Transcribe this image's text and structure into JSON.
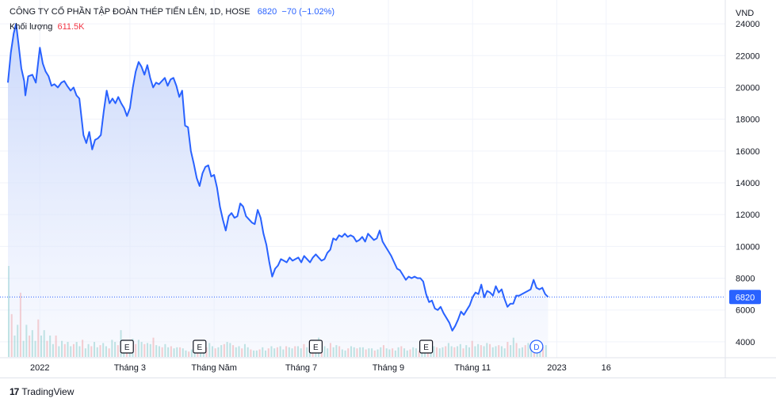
{
  "header": {
    "symbol_title": "CÔNG TY CỔ PHẦN TẬP ĐOÀN THÉP TIẾN LÊN, 1D, HOSE",
    "last_price": "6820",
    "change": "−70 (−1.02%)",
    "volume_label": "Khối lượng",
    "volume_value": "611.5K"
  },
  "footer": {
    "brand": "TradingView",
    "logo_text": "17"
  },
  "colors": {
    "line": "#2962ff",
    "area_top": "#c8d6fb",
    "vol_up": "#26a69a",
    "vol_down": "#ef5350",
    "grid": "#f0f3fa"
  },
  "chart_data": {
    "type": "area",
    "ylabel": "VND",
    "ylim": [
      3000,
      25000
    ],
    "yticks": [
      4000,
      6000,
      8000,
      10000,
      12000,
      14000,
      16000,
      18000,
      20000,
      22000,
      24000
    ],
    "xlim": [
      0,
      12.35
    ],
    "x_ticks": [
      {
        "x": 0.55,
        "label": "2022"
      },
      {
        "x": 2.1,
        "label": "Tháng 3"
      },
      {
        "x": 3.55,
        "label": "Tháng Năm"
      },
      {
        "x": 5.05,
        "label": "Tháng 7"
      },
      {
        "x": 6.55,
        "label": "Tháng 9"
      },
      {
        "x": 8.0,
        "label": "Tháng 11"
      },
      {
        "x": 9.45,
        "label": "2023"
      },
      {
        "x": 10.3,
        "label": "16"
      }
    ],
    "last_value_label": "6820",
    "series": [
      {
        "values": [
          [
            0.0,
            20300
          ],
          [
            0.05,
            22200
          ],
          [
            0.1,
            23400
          ],
          [
            0.14,
            24000
          ],
          [
            0.18,
            22800
          ],
          [
            0.23,
            21200
          ],
          [
            0.28,
            20400
          ],
          [
            0.3,
            19500
          ],
          [
            0.35,
            20700
          ],
          [
            0.42,
            20800
          ],
          [
            0.48,
            20300
          ],
          [
            0.55,
            22500
          ],
          [
            0.6,
            21500
          ],
          [
            0.65,
            21000
          ],
          [
            0.7,
            20700
          ],
          [
            0.75,
            20100
          ],
          [
            0.8,
            20200
          ],
          [
            0.86,
            20000
          ],
          [
            0.92,
            20300
          ],
          [
            0.97,
            20400
          ],
          [
            1.02,
            20100
          ],
          [
            1.08,
            19800
          ],
          [
            1.13,
            20000
          ],
          [
            1.18,
            19500
          ],
          [
            1.23,
            19300
          ],
          [
            1.3,
            17000
          ],
          [
            1.35,
            16500
          ],
          [
            1.4,
            17200
          ],
          [
            1.45,
            16100
          ],
          [
            1.5,
            16700
          ],
          [
            1.55,
            16800
          ],
          [
            1.6,
            17000
          ],
          [
            1.65,
            18500
          ],
          [
            1.7,
            19800
          ],
          [
            1.75,
            19000
          ],
          [
            1.8,
            19300
          ],
          [
            1.85,
            19000
          ],
          [
            1.9,
            19400
          ],
          [
            1.95,
            19000
          ],
          [
            2.0,
            18700
          ],
          [
            2.05,
            18200
          ],
          [
            2.1,
            18700
          ],
          [
            2.15,
            20000
          ],
          [
            2.2,
            21000
          ],
          [
            2.25,
            21600
          ],
          [
            2.3,
            21300
          ],
          [
            2.35,
            20800
          ],
          [
            2.4,
            21400
          ],
          [
            2.45,
            20600
          ],
          [
            2.5,
            20000
          ],
          [
            2.55,
            20300
          ],
          [
            2.6,
            20200
          ],
          [
            2.65,
            20400
          ],
          [
            2.7,
            20600
          ],
          [
            2.75,
            20100
          ],
          [
            2.8,
            20500
          ],
          [
            2.85,
            20600
          ],
          [
            2.9,
            20100
          ],
          [
            2.95,
            19400
          ],
          [
            3.0,
            19800
          ],
          [
            3.05,
            17600
          ],
          [
            3.1,
            17500
          ],
          [
            3.15,
            16000
          ],
          [
            3.2,
            15200
          ],
          [
            3.25,
            14300
          ],
          [
            3.3,
            13800
          ],
          [
            3.35,
            14600
          ],
          [
            3.4,
            15000
          ],
          [
            3.45,
            15100
          ],
          [
            3.5,
            14400
          ],
          [
            3.55,
            14500
          ],
          [
            3.6,
            13700
          ],
          [
            3.65,
            12500
          ],
          [
            3.7,
            11700
          ],
          [
            3.75,
            11000
          ],
          [
            3.8,
            11900
          ],
          [
            3.85,
            12100
          ],
          [
            3.9,
            11800
          ],
          [
            3.95,
            11900
          ],
          [
            4.0,
            12700
          ],
          [
            4.05,
            12500
          ],
          [
            4.1,
            11900
          ],
          [
            4.15,
            11700
          ],
          [
            4.2,
            11500
          ],
          [
            4.25,
            11400
          ],
          [
            4.3,
            12300
          ],
          [
            4.35,
            11800
          ],
          [
            4.4,
            10800
          ],
          [
            4.45,
            10100
          ],
          [
            4.5,
            9000
          ],
          [
            4.55,
            8100
          ],
          [
            4.6,
            8600
          ],
          [
            4.65,
            8800
          ],
          [
            4.7,
            9200
          ],
          [
            4.75,
            9100
          ],
          [
            4.8,
            9000
          ],
          [
            4.85,
            9300
          ],
          [
            4.9,
            9100
          ],
          [
            4.95,
            9200
          ],
          [
            5.0,
            9300
          ],
          [
            5.05,
            9000
          ],
          [
            5.1,
            9400
          ],
          [
            5.15,
            9200
          ],
          [
            5.2,
            9000
          ],
          [
            5.25,
            9300
          ],
          [
            5.3,
            9500
          ],
          [
            5.35,
            9300
          ],
          [
            5.4,
            9100
          ],
          [
            5.45,
            9200
          ],
          [
            5.5,
            9600
          ],
          [
            5.55,
            9800
          ],
          [
            5.6,
            10500
          ],
          [
            5.65,
            10400
          ],
          [
            5.7,
            10700
          ],
          [
            5.75,
            10600
          ],
          [
            5.8,
            10800
          ],
          [
            5.85,
            10600
          ],
          [
            5.9,
            10700
          ],
          [
            5.95,
            10600
          ],
          [
            6.0,
            10300
          ],
          [
            6.05,
            10400
          ],
          [
            6.1,
            10600
          ],
          [
            6.15,
            10300
          ],
          [
            6.2,
            10800
          ],
          [
            6.25,
            10600
          ],
          [
            6.3,
            10400
          ],
          [
            6.35,
            10500
          ],
          [
            6.4,
            11000
          ],
          [
            6.45,
            10300
          ],
          [
            6.5,
            10000
          ],
          [
            6.55,
            9700
          ],
          [
            6.6,
            9400
          ],
          [
            6.65,
            9000
          ],
          [
            6.7,
            8600
          ],
          [
            6.75,
            8500
          ],
          [
            6.8,
            8200
          ],
          [
            6.85,
            7900
          ],
          [
            6.9,
            8100
          ],
          [
            6.95,
            8000
          ],
          [
            7.0,
            8100
          ],
          [
            7.05,
            8000
          ],
          [
            7.1,
            8000
          ],
          [
            7.15,
            7800
          ],
          [
            7.2,
            7000
          ],
          [
            7.25,
            6500
          ],
          [
            7.3,
            6600
          ],
          [
            7.35,
            6100
          ],
          [
            7.4,
            6000
          ],
          [
            7.45,
            6200
          ],
          [
            7.5,
            5800
          ],
          [
            7.55,
            5500
          ],
          [
            7.6,
            5200
          ],
          [
            7.65,
            4700
          ],
          [
            7.7,
            5000
          ],
          [
            7.75,
            5400
          ],
          [
            7.8,
            5900
          ],
          [
            7.85,
            5700
          ],
          [
            7.9,
            6000
          ],
          [
            7.95,
            6300
          ],
          [
            8.0,
            6800
          ],
          [
            8.05,
            7100
          ],
          [
            8.1,
            7000
          ],
          [
            8.15,
            7600
          ],
          [
            8.2,
            6800
          ],
          [
            8.25,
            7200
          ],
          [
            8.3,
            7100
          ],
          [
            8.35,
            6900
          ],
          [
            8.4,
            7500
          ],
          [
            8.45,
            7100
          ],
          [
            8.5,
            7300
          ],
          [
            8.55,
            6700
          ],
          [
            8.6,
            6200
          ],
          [
            8.65,
            6400
          ],
          [
            8.7,
            6400
          ],
          [
            8.75,
            6900
          ],
          [
            8.8,
            6900
          ],
          [
            8.85,
            7000
          ],
          [
            8.9,
            7100
          ],
          [
            8.95,
            7200
          ],
          [
            9.0,
            7300
          ],
          [
            9.05,
            7900
          ],
          [
            9.1,
            7400
          ],
          [
            9.15,
            7300
          ],
          [
            9.2,
            7400
          ],
          [
            9.25,
            7000
          ],
          [
            9.3,
            6820
          ]
        ]
      }
    ],
    "volume": [
      8.5,
      4,
      2,
      3,
      6,
      1.5,
      3,
      2,
      2.5,
      1.5,
      3.5,
      2,
      2.5,
      1.5,
      2,
      1.2,
      2,
      1,
      1.5,
      1.2,
      1.4,
      1,
      1.2,
      1.4,
      1,
      1.6,
      0.8,
      1.2,
      1,
      1.4,
      0.9,
      1.1,
      1.3,
      1,
      0.8,
      1.6,
      1.4,
      1.1,
      2.5,
      1.6,
      1.3,
      1.1,
      1.7,
      1.2,
      1.6,
      1.4,
      1.2,
      1.3,
      1.2,
      1.8,
      1.1,
      1,
      0.9,
      1.2,
      0.9,
      1,
      0.8,
      0.9,
      0.9,
      0.8,
      0.6,
      0.5,
      0.7,
      0.5,
      0.7,
      0.8,
      0.7,
      0.9,
      1.3,
      1,
      0.8,
      0.9,
      1.1,
      1.2,
      1.4,
      1.3,
      1.1,
      0.9,
      1,
      0.8,
      1.2,
      0.9,
      0.7,
      0.6,
      0.6,
      0.7,
      0.9,
      0.6,
      0.8,
      1,
      0.8,
      0.9,
      1,
      0.7,
      1,
      0.9,
      0.8,
      1,
      1,
      0.8,
      1.2,
      0.9,
      0.8,
      0.9,
      1.1,
      1.8,
      1.2,
      1,
      0.8,
      1.3,
      0.9,
      1.1,
      1,
      0.7,
      0.6,
      0.8,
      1,
      0.9,
      0.8,
      0.9,
      0.9,
      0.7,
      0.8,
      0.8,
      0.6,
      0.7,
      0.9,
      1.1,
      0.8,
      0.7,
      0.8,
      0.6,
      0.9,
      1,
      0.8,
      0.6,
      0.7,
      0.9,
      0.8,
      0.6,
      0.7,
      0.9,
      1,
      1.2,
      1,
      0.9,
      0.8,
      0.9,
      1,
      1.3,
      1,
      0.9,
      1,
      1.2,
      0.8,
      1.1,
      0.9,
      1.5,
      1,
      1.2,
      1.1,
      1,
      1.3,
      1.2,
      0.9,
      1,
      1.1,
      1,
      0.8,
      1.4,
      1.1,
      1.8,
      1.3,
      0.8,
      0.9,
      1.1,
      1.3,
      1,
      0.9,
      1,
      1.2,
      0.9,
      1.1
    ],
    "event_markers": [
      {
        "x": 2.05,
        "label": "E"
      },
      {
        "x": 3.3,
        "label": "E"
      },
      {
        "x": 5.3,
        "label": "E"
      },
      {
        "x": 7.2,
        "label": "E"
      },
      {
        "x": 9.1,
        "label": "D"
      }
    ]
  }
}
